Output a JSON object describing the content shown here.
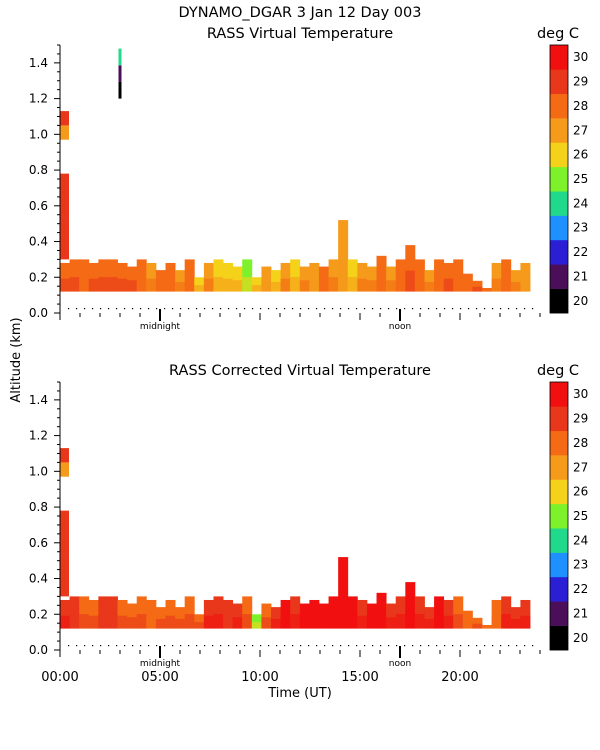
{
  "header": {
    "title": "DYNAMO_DGAR    3 Jan 12 Day 003"
  },
  "colors": {
    "palette": [
      "#000000",
      "#4b0f5a",
      "#2b1fd6",
      "#1e90ff",
      "#21d98a",
      "#7df22b",
      "#f5d21a",
      "#f59a1a",
      "#f56a14",
      "#e8371a",
      "#f20f0f"
    ]
  },
  "chart_data": [
    {
      "type": "heatmap",
      "title": "RASS Virtual Temperature",
      "unit_label": "deg C",
      "ylabel": "Altitude (km)",
      "xlabel": "",
      "xlim": [
        0,
        24
      ],
      "ylim": [
        0,
        1.5
      ],
      "yticks": [
        "0.0",
        "0.2",
        "0.4",
        "0.6",
        "0.8",
        "1.0",
        "1.2",
        "1.4"
      ],
      "xtick_values": [
        0,
        5,
        10,
        15,
        20
      ],
      "xtick_labels": [
        "",
        "",
        "",
        "",
        ""
      ],
      "annotations": {
        "midnight": "midnight",
        "noon": "noon"
      },
      "colorbar": {
        "min": 20,
        "max": 31,
        "labels": [
          "20",
          "21",
          "22",
          "23",
          "24",
          "25",
          "26",
          "27",
          "28",
          "29",
          "30"
        ]
      },
      "grid": "off",
      "series": [
        {
          "name": "main_layer",
          "top": [
            0.28,
            0.3,
            0.3,
            0.28,
            0.3,
            0.3,
            0.28,
            0.26,
            0.3,
            0.28,
            0.24,
            0.28,
            0.24,
            0.3,
            0.2,
            0.28,
            0.3,
            0.28,
            0.26,
            0.3,
            0.2,
            0.26,
            0.24,
            0.28,
            0.3,
            0.26,
            0.28,
            0.26,
            0.3,
            0.52,
            0.3,
            0.28,
            0.26,
            0.32,
            0.26,
            0.3,
            0.38,
            0.3,
            0.24,
            0.3,
            0.28,
            0.3,
            0.22,
            0.18,
            0.14,
            0.28,
            0.3,
            0.24,
            0.28
          ],
          "temps": [
            28.8,
            28.3,
            28.0,
            28.3,
            28.5,
            28.8,
            28.3,
            28.4,
            28.0,
            27.2,
            28.1,
            28.0,
            27.2,
            28.1,
            26.5,
            27.5,
            26.2,
            26.6,
            26.4,
            25.3,
            26.4,
            27.1,
            26.8,
            27.5,
            26.6,
            27.6,
            27.0,
            28.1,
            27.5,
            27.0,
            26.9,
            27.3,
            27.5,
            28.1,
            27.5,
            28.1,
            28.4,
            28.0,
            27.5,
            28.1,
            28.4,
            28.0,
            28.0,
            28.2,
            28.0,
            27.8,
            28.0,
            27.8,
            27.0
          ]
        },
        {
          "name": "column_low",
          "x": 0.2,
          "altitude": [
            0.3,
            0.78
          ],
          "temps": [
            29.2,
            29.6
          ]
        },
        {
          "name": "column_high",
          "x": 0.2,
          "altitude": [
            0.97,
            1.13
          ],
          "temps": [
            27.5,
            29.4
          ]
        },
        {
          "name": "isolated_profile",
          "x": 3.0,
          "altitude": [
            1.2,
            1.48
          ],
          "temps": [
            20,
            21.5,
            24
          ]
        }
      ]
    },
    {
      "type": "heatmap",
      "title": "RASS Corrected Virtual Temperature",
      "unit_label": "deg C",
      "ylabel": "",
      "xlabel": "Time (UT)",
      "xlim": [
        0,
        24
      ],
      "ylim": [
        0,
        1.5
      ],
      "yticks": [
        "0.0",
        "0.2",
        "0.4",
        "0.6",
        "0.8",
        "1.0",
        "1.2",
        "1.4"
      ],
      "xtick_values": [
        0,
        5,
        10,
        15,
        20
      ],
      "xtick_labels": [
        "00:00",
        "05:00",
        "10:00",
        "15:00",
        "20:00"
      ],
      "annotations": {
        "midnight": "midnight",
        "noon": "noon"
      },
      "colorbar": {
        "min": 20,
        "max": 31,
        "labels": [
          "20",
          "21",
          "22",
          "23",
          "24",
          "25",
          "26",
          "27",
          "28",
          "29",
          "30"
        ]
      },
      "grid": "off",
      "series": [
        {
          "name": "main_layer",
          "top": [
            0.28,
            0.3,
            0.3,
            0.28,
            0.3,
            0.3,
            0.28,
            0.26,
            0.3,
            0.28,
            0.24,
            0.28,
            0.24,
            0.3,
            0.2,
            0.28,
            0.3,
            0.28,
            0.26,
            0.3,
            0.2,
            0.26,
            0.24,
            0.28,
            0.3,
            0.26,
            0.28,
            0.26,
            0.3,
            0.52,
            0.3,
            0.28,
            0.26,
            0.32,
            0.26,
            0.3,
            0.38,
            0.3,
            0.24,
            0.3,
            0.28,
            0.3,
            0.22,
            0.18,
            0.14,
            0.28,
            0.3,
            0.24,
            0.28
          ],
          "temps": [
            29.3,
            29.0,
            28.4,
            28.7,
            29.0,
            29.1,
            28.9,
            28.8,
            28.5,
            28.1,
            28.4,
            28.7,
            28.2,
            28.9,
            28.8,
            29.6,
            29.4,
            29.0,
            29.6,
            28.6,
            25.4,
            28.3,
            29.6,
            30.1,
            29.7,
            30.1,
            30.0,
            30.2,
            30.1,
            30.0,
            30.3,
            29.8,
            30.0,
            30.1,
            29.8,
            29.9,
            30.2,
            29.9,
            29.6,
            30.0,
            29.4,
            28.2,
            28.0,
            28.2,
            28.0,
            28.0,
            29.8,
            29.6,
            29.9
          ]
        },
        {
          "name": "column_low",
          "x": 0.2,
          "altitude": [
            0.3,
            0.78
          ],
          "temps": [
            29.3,
            29.7
          ]
        },
        {
          "name": "column_high",
          "x": 0.2,
          "altitude": [
            0.97,
            1.13
          ],
          "temps": [
            27.5,
            29.4
          ]
        }
      ]
    }
  ]
}
